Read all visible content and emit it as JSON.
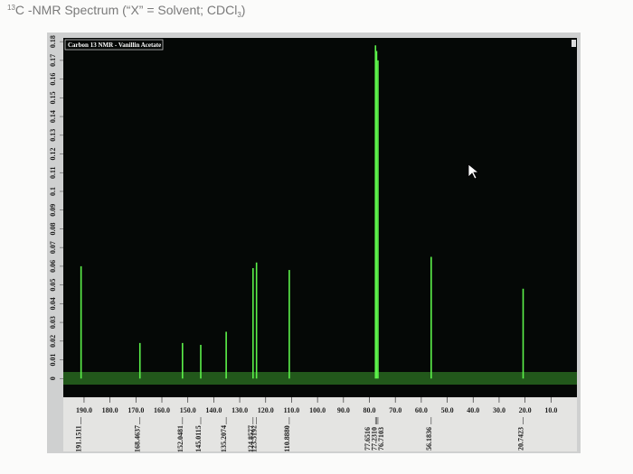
{
  "chart_data": {
    "type": "stem",
    "title": {
      "sup": "13",
      "main": "C -NMR Spectrum (“X” = Solvent; CDCl",
      "sub": "3",
      "end": ")"
    },
    "subtitle": "Carbon 13 NMR - Vanillin Acetate",
    "color": "#5cf24a",
    "x": [
      191.1511,
      168.4637,
      152.0481,
      145.0115,
      135.2074,
      124.8577,
      123.5192,
      110.888,
      77.6516,
      77.231,
      76.7103,
      56.1836,
      20.7423
    ],
    "x_labels": [
      "191.1511",
      "168.4637",
      "152.0481",
      "145.0115",
      "135.2074",
      "124.8577",
      "123.5192",
      "110.8880",
      "77.6516",
      "77.2310",
      "76.7103",
      "56.1836",
      "20.7423"
    ],
    "values": [
      0.06,
      0.019,
      0.019,
      0.018,
      0.025,
      0.059,
      0.062,
      0.058,
      0.178,
      0.175,
      0.17,
      0.065,
      0.048
    ],
    "xlim": [
      198,
      0
    ],
    "ylim": [
      -0.01,
      0.182
    ],
    "xticks": [
      {
        "value": 190,
        "label": "190.0"
      },
      {
        "value": 180,
        "label": "180.0"
      },
      {
        "value": 170,
        "label": "170.0"
      },
      {
        "value": 160,
        "label": "160.0"
      },
      {
        "value": 150,
        "label": "150.0"
      },
      {
        "value": 140,
        "label": "140.0"
      },
      {
        "value": 130,
        "label": "130.0"
      },
      {
        "value": 120,
        "label": "120.0"
      },
      {
        "value": 110,
        "label": "110.0"
      },
      {
        "value": 100,
        "label": "100.0"
      },
      {
        "value": 90,
        "label": "90.0"
      },
      {
        "value": 80,
        "label": "80.0"
      },
      {
        "value": 70,
        "label": "70.0"
      },
      {
        "value": 60,
        "label": "60.0"
      },
      {
        "value": 50,
        "label": "50.0"
      },
      {
        "value": 40,
        "label": "40.0"
      },
      {
        "value": 30,
        "label": "30.0"
      },
      {
        "value": 20,
        "label": "20.0"
      },
      {
        "value": 10,
        "label": "10.0"
      }
    ],
    "yticks": [
      0,
      0.01,
      0.02,
      0.03,
      0.04,
      0.05,
      0.06,
      0.07,
      0.08,
      0.09,
      0.1,
      0.11,
      0.12,
      0.13,
      0.14,
      0.15,
      0.16,
      0.17,
      0.18
    ]
  }
}
